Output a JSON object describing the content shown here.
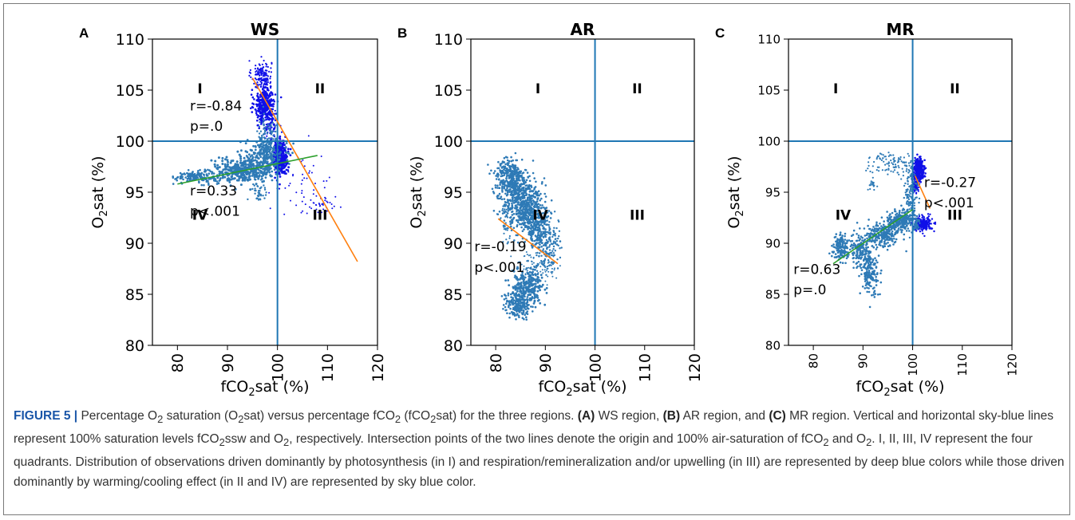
{
  "colors": {
    "axis_line": "#1f77b4",
    "sky_blue": "#2e7ab6",
    "deep_blue": "#1010e8",
    "trend_orange": "#ff7f0e",
    "trend_green": "#2ca02c",
    "caption_label": "#1a56a8"
  },
  "chart_data": [
    {
      "type": "scatter",
      "panel_letter": "A",
      "title": "WS",
      "xlabel": "fCO2sat (%)",
      "ylabel": "O2sat (%)",
      "xlim": [
        75,
        120
      ],
      "ylim": [
        80,
        110
      ],
      "xticks": [
        80,
        90,
        100,
        110,
        120
      ],
      "xtick_labels": [
        "80",
        "90",
        "100",
        "110",
        "120"
      ],
      "yticks": [
        80,
        85,
        90,
        95,
        100,
        105,
        110
      ],
      "ytick_labels": [
        "80",
        "85",
        "90",
        "95",
        "100",
        "105",
        "110"
      ],
      "reference_lines": {
        "x": 100,
        "y": 100
      },
      "quadrant_labels": [
        {
          "text": "I",
          "x": 84.5,
          "y": 104.7
        },
        {
          "text": "II",
          "x": 108.5,
          "y": 104.7
        },
        {
          "text": "III",
          "x": 108.5,
          "y": 92.3
        },
        {
          "text": "IV",
          "x": 84.5,
          "y": 92.3
        }
      ],
      "annotations": [
        {
          "text": "r=-0.84",
          "x": 82.5,
          "y": 103.0
        },
        {
          "text": "p=.0",
          "x": 82.5,
          "y": 101.0
        },
        {
          "text": "r=0.33",
          "x": 82.5,
          "y": 94.7
        },
        {
          "text": "p<.001",
          "x": 82.5,
          "y": 92.7
        }
      ],
      "trend_lines": [
        {
          "name": "",
          "color": "#ff7f0e",
          "x": [
            95,
            116
          ],
          "y": [
            106.2,
            88.2
          ]
        },
        {
          "name": "",
          "color": "#2ca02c",
          "x": [
            80,
            108
          ],
          "y": [
            95.8,
            98.6
          ]
        }
      ],
      "clusters": [
        {
          "color": "deep",
          "cx": 96.8,
          "cy": 106.5,
          "sx": 1.0,
          "sy": 0.7,
          "n": 130,
          "size": 1.1
        },
        {
          "color": "deep",
          "cx": 97.5,
          "cy": 103.6,
          "sx": 1.0,
          "sy": 0.9,
          "n": 330,
          "size": 1.3
        },
        {
          "color": "deep",
          "cx": 98.5,
          "cy": 101.6,
          "sx": 0.8,
          "sy": 0.8,
          "n": 90,
          "size": 1.1
        },
        {
          "color": "deep",
          "cx": 100.6,
          "cy": 98.4,
          "sx": 0.7,
          "sy": 0.8,
          "n": 320,
          "size": 1.4
        },
        {
          "color": "deep",
          "cx": 105.0,
          "cy": 96.0,
          "sx": 3.4,
          "sy": 1.6,
          "n": 45,
          "size": 1.0
        },
        {
          "color": "deep",
          "cx": 109.0,
          "cy": 93.6,
          "sx": 1.4,
          "sy": 0.5,
          "n": 35,
          "size": 1.0
        },
        {
          "color": "sky",
          "cx": 84.0,
          "cy": 96.5,
          "sx": 2.2,
          "sy": 0.3,
          "n": 160,
          "size": 1.3
        },
        {
          "color": "sky",
          "cx": 93.0,
          "cy": 97.1,
          "sx": 2.8,
          "sy": 0.6,
          "n": 320,
          "size": 1.5
        },
        {
          "color": "sky",
          "cx": 97.5,
          "cy": 98.5,
          "sx": 1.8,
          "sy": 0.9,
          "n": 260,
          "size": 1.4
        },
        {
          "color": "sky",
          "cx": 97.8,
          "cy": 100.8,
          "sx": 1.1,
          "sy": 1.0,
          "n": 60,
          "size": 1.2
        },
        {
          "color": "sky",
          "cx": 96.3,
          "cy": 95.0,
          "sx": 0.7,
          "sy": 0.7,
          "n": 40,
          "size": 1.2
        }
      ]
    },
    {
      "type": "scatter",
      "panel_letter": "B",
      "title": "AR",
      "xlabel": "fCO2sat (%)",
      "ylabel": "O2sat (%)",
      "xlim": [
        75,
        120
      ],
      "ylim": [
        80,
        110
      ],
      "xticks": [
        80,
        90,
        100,
        110,
        120
      ],
      "xtick_labels": [
        "80",
        "90",
        "100",
        "110",
        "120"
      ],
      "yticks": [
        80,
        85,
        90,
        95,
        100,
        105,
        110
      ],
      "ytick_labels": [
        "80",
        "85",
        "90",
        "95",
        "100",
        "105",
        "110"
      ],
      "reference_lines": {
        "x": 100,
        "y": 100
      },
      "quadrant_labels": [
        {
          "text": "I",
          "x": 88.5,
          "y": 104.7
        },
        {
          "text": "II",
          "x": 108.5,
          "y": 104.7
        },
        {
          "text": "III",
          "x": 108.5,
          "y": 92.3
        },
        {
          "text": "IV",
          "x": 89.0,
          "y": 92.3
        }
      ],
      "annotations": [
        {
          "text": "r=-0.19",
          "x": 75.7,
          "y": 89.2
        },
        {
          "text": "p<.001",
          "x": 75.7,
          "y": 87.2
        }
      ],
      "trend_lines": [
        {
          "name": "",
          "color": "#ff7f0e",
          "x": [
            80.5,
            92.5
          ],
          "y": [
            92.4,
            88.0
          ]
        }
      ],
      "clusters": [
        {
          "color": "sky",
          "cx": 82.5,
          "cy": 96.5,
          "sx": 1.5,
          "sy": 0.9,
          "n": 260,
          "size": 1.3
        },
        {
          "color": "sky",
          "cx": 84.5,
          "cy": 94.5,
          "sx": 1.6,
          "sy": 1.3,
          "n": 340,
          "size": 1.3
        },
        {
          "color": "sky",
          "cx": 86.5,
          "cy": 93.5,
          "sx": 1.5,
          "sy": 1.4,
          "n": 300,
          "size": 1.3
        },
        {
          "color": "sky",
          "cx": 88.5,
          "cy": 91.8,
          "sx": 1.2,
          "sy": 1.2,
          "n": 240,
          "size": 1.3
        },
        {
          "color": "sky",
          "cx": 90.5,
          "cy": 89.5,
          "sx": 1.1,
          "sy": 1.2,
          "n": 130,
          "size": 1.2
        },
        {
          "color": "sky",
          "cx": 88.0,
          "cy": 87.6,
          "sx": 2.5,
          "sy": 0.8,
          "n": 90,
          "size": 1.0
        },
        {
          "color": "sky",
          "cx": 86.5,
          "cy": 85.7,
          "sx": 1.6,
          "sy": 0.8,
          "n": 260,
          "size": 1.4
        },
        {
          "color": "sky",
          "cx": 84.5,
          "cy": 84.0,
          "sx": 1.3,
          "sy": 0.6,
          "n": 180,
          "size": 1.3
        },
        {
          "color": "sky",
          "cx": 82.0,
          "cy": 92.0,
          "sx": 0.6,
          "sy": 1.0,
          "n": 40,
          "size": 1.1
        }
      ]
    },
    {
      "type": "scatter",
      "panel_letter": "C",
      "title": "MR",
      "xlabel": "fCO2sat (%)",
      "ylabel": "O2sat (%)",
      "xlim": [
        75,
        120
      ],
      "ylim": [
        80,
        110
      ],
      "xticks": [
        80,
        90,
        100,
        110,
        120
      ],
      "xtick_labels": [
        "80",
        "90",
        "100",
        "110",
        "120"
      ],
      "yticks": [
        80,
        85,
        90,
        95,
        100,
        105,
        110
      ],
      "ytick_labels": [
        "80",
        "85",
        "90",
        "95",
        "100",
        "105",
        "110"
      ],
      "reference_lines": {
        "x": 100,
        "y": 100
      },
      "quadrant_labels": [
        {
          "text": "I",
          "x": 84.5,
          "y": 104.7
        },
        {
          "text": "II",
          "x": 108.5,
          "y": 104.7
        },
        {
          "text": "III",
          "x": 108.5,
          "y": 92.3
        },
        {
          "text": "IV",
          "x": 86.0,
          "y": 92.3
        }
      ],
      "annotations": [
        {
          "text": "r=-0.27",
          "x": 102.3,
          "y": 95.5
        },
        {
          "text": "p<.001",
          "x": 102.3,
          "y": 93.5
        },
        {
          "text": "r=0.63",
          "x": 76.0,
          "y": 87.0
        },
        {
          "text": "p=.0",
          "x": 76.0,
          "y": 85.0
        }
      ],
      "trend_lines": [
        {
          "name": "",
          "color": "#ff7f0e",
          "x": [
            100.5,
            103.5
          ],
          "y": [
            96.6,
            93.4
          ]
        },
        {
          "name": "",
          "color": "#2ca02c",
          "x": [
            84,
            100
          ],
          "y": [
            88.0,
            93.3
          ]
        }
      ],
      "clusters": [
        {
          "color": "deep",
          "cx": 101.3,
          "cy": 97.3,
          "sx": 0.5,
          "sy": 0.5,
          "n": 260,
          "size": 1.3
        },
        {
          "color": "deep",
          "cx": 100.6,
          "cy": 95.8,
          "sx": 0.4,
          "sy": 0.4,
          "n": 90,
          "size": 1.1
        },
        {
          "color": "deep",
          "cx": 102.0,
          "cy": 91.9,
          "sx": 1.0,
          "sy": 0.35,
          "n": 200,
          "size": 1.2
        },
        {
          "color": "sky",
          "cx": 85.5,
          "cy": 89.5,
          "sx": 0.8,
          "sy": 0.6,
          "n": 140,
          "size": 1.3
        },
        {
          "color": "sky",
          "cx": 89.5,
          "cy": 89.5,
          "sx": 1.0,
          "sy": 0.8,
          "n": 150,
          "size": 1.3
        },
        {
          "color": "sky",
          "cx": 91.5,
          "cy": 87.0,
          "sx": 0.9,
          "sy": 1.1,
          "n": 160,
          "size": 1.3
        },
        {
          "color": "sky",
          "cx": 94.0,
          "cy": 90.8,
          "sx": 1.5,
          "sy": 0.6,
          "n": 220,
          "size": 1.3
        },
        {
          "color": "sky",
          "cx": 97.5,
          "cy": 92.2,
          "sx": 1.3,
          "sy": 0.5,
          "n": 240,
          "size": 1.3
        },
        {
          "color": "sky",
          "cx": 95.5,
          "cy": 97.7,
          "sx": 2.5,
          "sy": 0.6,
          "n": 100,
          "size": 1.1
        },
        {
          "color": "sky",
          "cx": 99.6,
          "cy": 95.0,
          "sx": 0.6,
          "sy": 1.5,
          "n": 120,
          "size": 1.2
        },
        {
          "color": "sky",
          "cx": 92.0,
          "cy": 95.8,
          "sx": 0.5,
          "sy": 0.3,
          "n": 20,
          "size": 1.1
        },
        {
          "color": "sky",
          "cx": 100.8,
          "cy": 91.9,
          "sx": 0.4,
          "sy": 0.3,
          "n": 40,
          "size": 1.1
        }
      ]
    }
  ],
  "caption": {
    "figure_label": "FIGURE 5 |",
    "line1_a": " Percentage O",
    "line1_b": " saturation (O",
    "line1_c": "sat) versus percentage fCO",
    "line1_d": " (fCO",
    "line1_e": "sat) for the three regions. ",
    "panel_a_ref": "(A)",
    "panel_a_text": " WS region, ",
    "panel_b_ref": "(B)",
    "panel_b_text": " AR region, and ",
    "panel_c_ref": "(C)",
    "panel_c_text": " MR region. Vertical and horizontal sky-blue lines represent 100% saturation levels fCO",
    "rest_a": "ssw and O",
    "rest_b": ", respectively. Intersection points of the two lines denote the origin and 100% air-saturation of fCO",
    "rest_c": " and O",
    "rest_d": ". I, II, III, IV represent the four quadrants. Distribution of observations driven dominantly by photosynthesis (in I) and respiration/remineralization and/or upwelling (in III) are represented by deep blue colors while those driven dominantly by warming/cooling effect (in II and IV) are represented by sky blue color.",
    "sub2": "2"
  }
}
